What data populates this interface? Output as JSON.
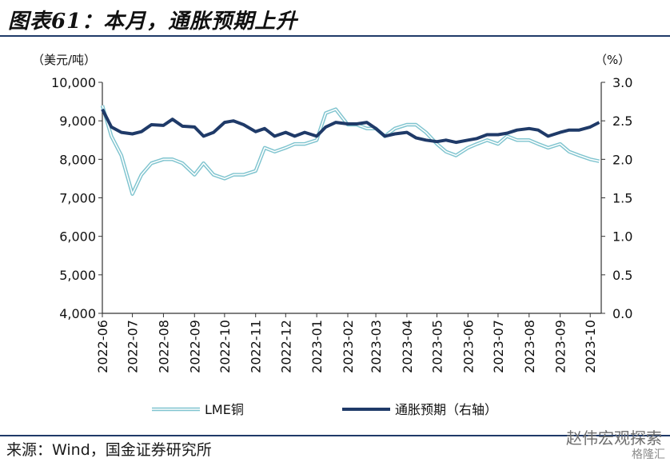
{
  "title": "图表61：本月，通胀预期上升",
  "source": "来源：Wind，国金证券研究所",
  "watermark": "赵伟宏观探索",
  "watermark_sub": "格隆汇",
  "chart_data": {
    "type": "line",
    "left_axis": {
      "unit": "（美元/吨）",
      "ylim": [
        4000,
        10000
      ],
      "ticks": [
        "4,000",
        "5,000",
        "6,000",
        "7,000",
        "8,000",
        "9,000",
        "10,000"
      ]
    },
    "right_axis": {
      "unit": "（%）",
      "ylim": [
        0.0,
        3.0
      ],
      "ticks": [
        "0.0",
        "0.5",
        "1.0",
        "1.5",
        "2.0",
        "2.5",
        "3.0"
      ]
    },
    "x_ticks": [
      "2022-06",
      "2022-07",
      "2022-08",
      "2022-09",
      "2022-10",
      "2022-11",
      "2022-12",
      "2023-01",
      "2023-02",
      "2023-03",
      "2023-04",
      "2023-05",
      "2023-06",
      "2023-07",
      "2023-08",
      "2023-09",
      "2023-10"
    ],
    "colors": {
      "copper": "#7fc4cf",
      "inflation": "#1f3a68"
    },
    "series": [
      {
        "name": "LME铜",
        "axis": "left",
        "x": [
          "2022-06-01",
          "2022-06-10",
          "2022-06-20",
          "2022-07-01",
          "2022-07-10",
          "2022-07-20",
          "2022-08-01",
          "2022-08-10",
          "2022-08-20",
          "2022-09-01",
          "2022-09-10",
          "2022-09-20",
          "2022-10-01",
          "2022-10-10",
          "2022-10-20",
          "2022-11-01",
          "2022-11-10",
          "2022-11-20",
          "2022-12-01",
          "2022-12-10",
          "2022-12-20",
          "2023-01-01",
          "2023-01-10",
          "2023-01-20",
          "2023-02-01",
          "2023-02-10",
          "2023-02-20",
          "2023-03-01",
          "2023-03-10",
          "2023-03-20",
          "2023-04-01",
          "2023-04-10",
          "2023-04-20",
          "2023-05-01",
          "2023-05-10",
          "2023-05-20",
          "2023-06-01",
          "2023-06-10",
          "2023-06-20",
          "2023-07-01",
          "2023-07-10",
          "2023-07-20",
          "2023-08-01",
          "2023-08-10",
          "2023-08-20",
          "2023-09-01",
          "2023-09-10",
          "2023-09-20",
          "2023-10-01",
          "2023-10-10"
        ],
        "values": [
          9400,
          8600,
          8100,
          7100,
          7600,
          7900,
          8000,
          8000,
          7900,
          7600,
          7900,
          7600,
          7500,
          7600,
          7600,
          7700,
          8300,
          8200,
          8300,
          8400,
          8400,
          8500,
          9200,
          9300,
          8900,
          8900,
          8800,
          8800,
          8600,
          8800,
          8900,
          8900,
          8700,
          8400,
          8200,
          8100,
          8300,
          8400,
          8500,
          8400,
          8600,
          8500,
          8500,
          8400,
          8300,
          8400,
          8200,
          8100,
          8000,
          7950
        ]
      },
      {
        "name": "通胀预期（右轴）",
        "axis": "right",
        "x": [
          "2022-06-01",
          "2022-06-10",
          "2022-06-20",
          "2022-07-01",
          "2022-07-10",
          "2022-07-20",
          "2022-08-01",
          "2022-08-10",
          "2022-08-20",
          "2022-09-01",
          "2022-09-10",
          "2022-09-20",
          "2022-10-01",
          "2022-10-10",
          "2022-10-20",
          "2022-11-01",
          "2022-11-10",
          "2022-11-20",
          "2022-12-01",
          "2022-12-10",
          "2022-12-20",
          "2023-01-01",
          "2023-01-10",
          "2023-01-20",
          "2023-02-01",
          "2023-02-10",
          "2023-02-20",
          "2023-03-01",
          "2023-03-10",
          "2023-03-20",
          "2023-04-01",
          "2023-04-10",
          "2023-04-20",
          "2023-05-01",
          "2023-05-10",
          "2023-05-20",
          "2023-06-01",
          "2023-06-10",
          "2023-06-20",
          "2023-07-01",
          "2023-07-10",
          "2023-07-20",
          "2023-08-01",
          "2023-08-10",
          "2023-08-20",
          "2023-09-01",
          "2023-09-10",
          "2023-09-20",
          "2023-10-01",
          "2023-10-10"
        ],
        "values": [
          2.65,
          2.42,
          2.35,
          2.33,
          2.36,
          2.45,
          2.44,
          2.52,
          2.43,
          2.42,
          2.3,
          2.35,
          2.48,
          2.5,
          2.45,
          2.36,
          2.4,
          2.3,
          2.35,
          2.3,
          2.35,
          2.3,
          2.42,
          2.48,
          2.46,
          2.46,
          2.48,
          2.4,
          2.3,
          2.33,
          2.35,
          2.28,
          2.25,
          2.23,
          2.25,
          2.22,
          2.25,
          2.27,
          2.32,
          2.32,
          2.34,
          2.38,
          2.4,
          2.38,
          2.3,
          2.35,
          2.38,
          2.38,
          2.42,
          2.48
        ]
      }
    ]
  }
}
